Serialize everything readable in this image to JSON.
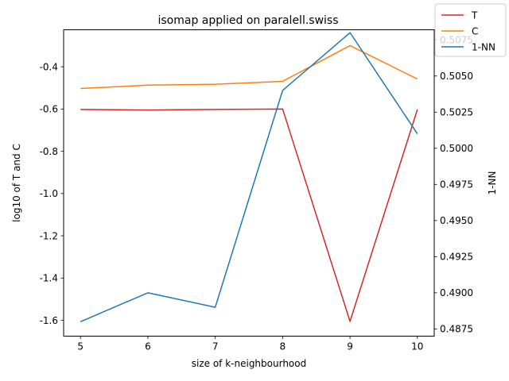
{
  "chart_data": {
    "type": "line",
    "title": "isomap applied on paralell.swiss",
    "xlabel": "size of k-neighbourhood",
    "ylabel_left": "log10 of T and C",
    "ylabel_right": "1-NN",
    "x": [
      5,
      6,
      7,
      8,
      9,
      10
    ],
    "x_ticks": [
      "5",
      "6",
      "7",
      "8",
      "9",
      "10"
    ],
    "xlim": [
      4.75,
      10.25
    ],
    "ylim_left": [
      -1.675,
      -0.225
    ],
    "y_ticks_left": [
      "-1.6",
      "-1.4",
      "-1.2",
      "-1.0",
      "-0.8",
      "-0.6",
      "-0.4"
    ],
    "ylim_right": [
      0.487,
      0.5082
    ],
    "y_ticks_right": [
      "0.4875",
      "0.4900",
      "0.4925",
      "0.4950",
      "0.4975",
      "0.5000",
      "0.5025",
      "0.5050",
      "0.5075"
    ],
    "series": [
      {
        "name": "T",
        "axis": "left",
        "color": "#d62728",
        "values": [
          -0.602,
          -0.605,
          -0.602,
          -0.6,
          -1.605,
          -0.602
        ]
      },
      {
        "name": "C",
        "axis": "left",
        "color": "#ff7f0e",
        "values": [
          -0.503,
          -0.487,
          -0.483,
          -0.469,
          -0.3,
          -0.458
        ]
      },
      {
        "name": "1-NN",
        "axis": "right",
        "color": "#1f77b4",
        "values": [
          0.488,
          0.49,
          0.489,
          0.504,
          0.508,
          0.501
        ]
      }
    ],
    "legend": "top-right",
    "grid": false
  }
}
